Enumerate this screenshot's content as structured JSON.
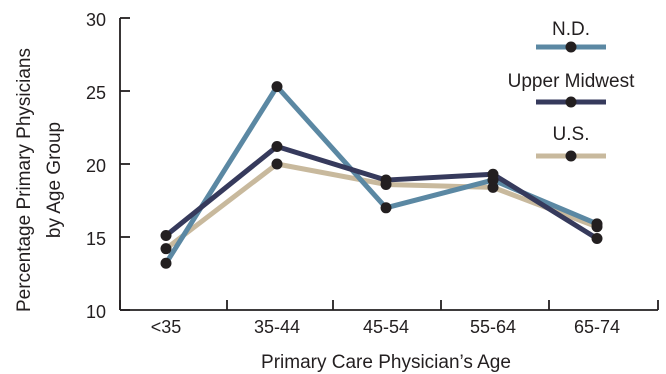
{
  "chart_data": {
    "type": "line",
    "categories": [
      "<35",
      "35-44",
      "45-54",
      "55-64",
      "65-74"
    ],
    "xlabel": "Primary Care Physician’s Age",
    "ylabel_lines": [
      "Percentage Primary Physicians",
      "by Age Group"
    ],
    "ylim": [
      10,
      30
    ],
    "yticks": [
      10,
      15,
      20,
      25,
      30
    ],
    "grid": false,
    "legend_position": "top-right",
    "series": [
      {
        "name": "N.D.",
        "color": "#5b88a3",
        "values": [
          13.2,
          25.3,
          17.0,
          18.9,
          15.9
        ]
      },
      {
        "name": "Upper Midwest",
        "color": "#363a5c",
        "values": [
          15.1,
          21.2,
          18.9,
          19.3,
          14.9
        ]
      },
      {
        "name": "U.S.",
        "color": "#c8b99d",
        "values": [
          14.2,
          20.0,
          18.6,
          18.4,
          15.7
        ]
      }
    ],
    "marker_color": "#231f20"
  }
}
